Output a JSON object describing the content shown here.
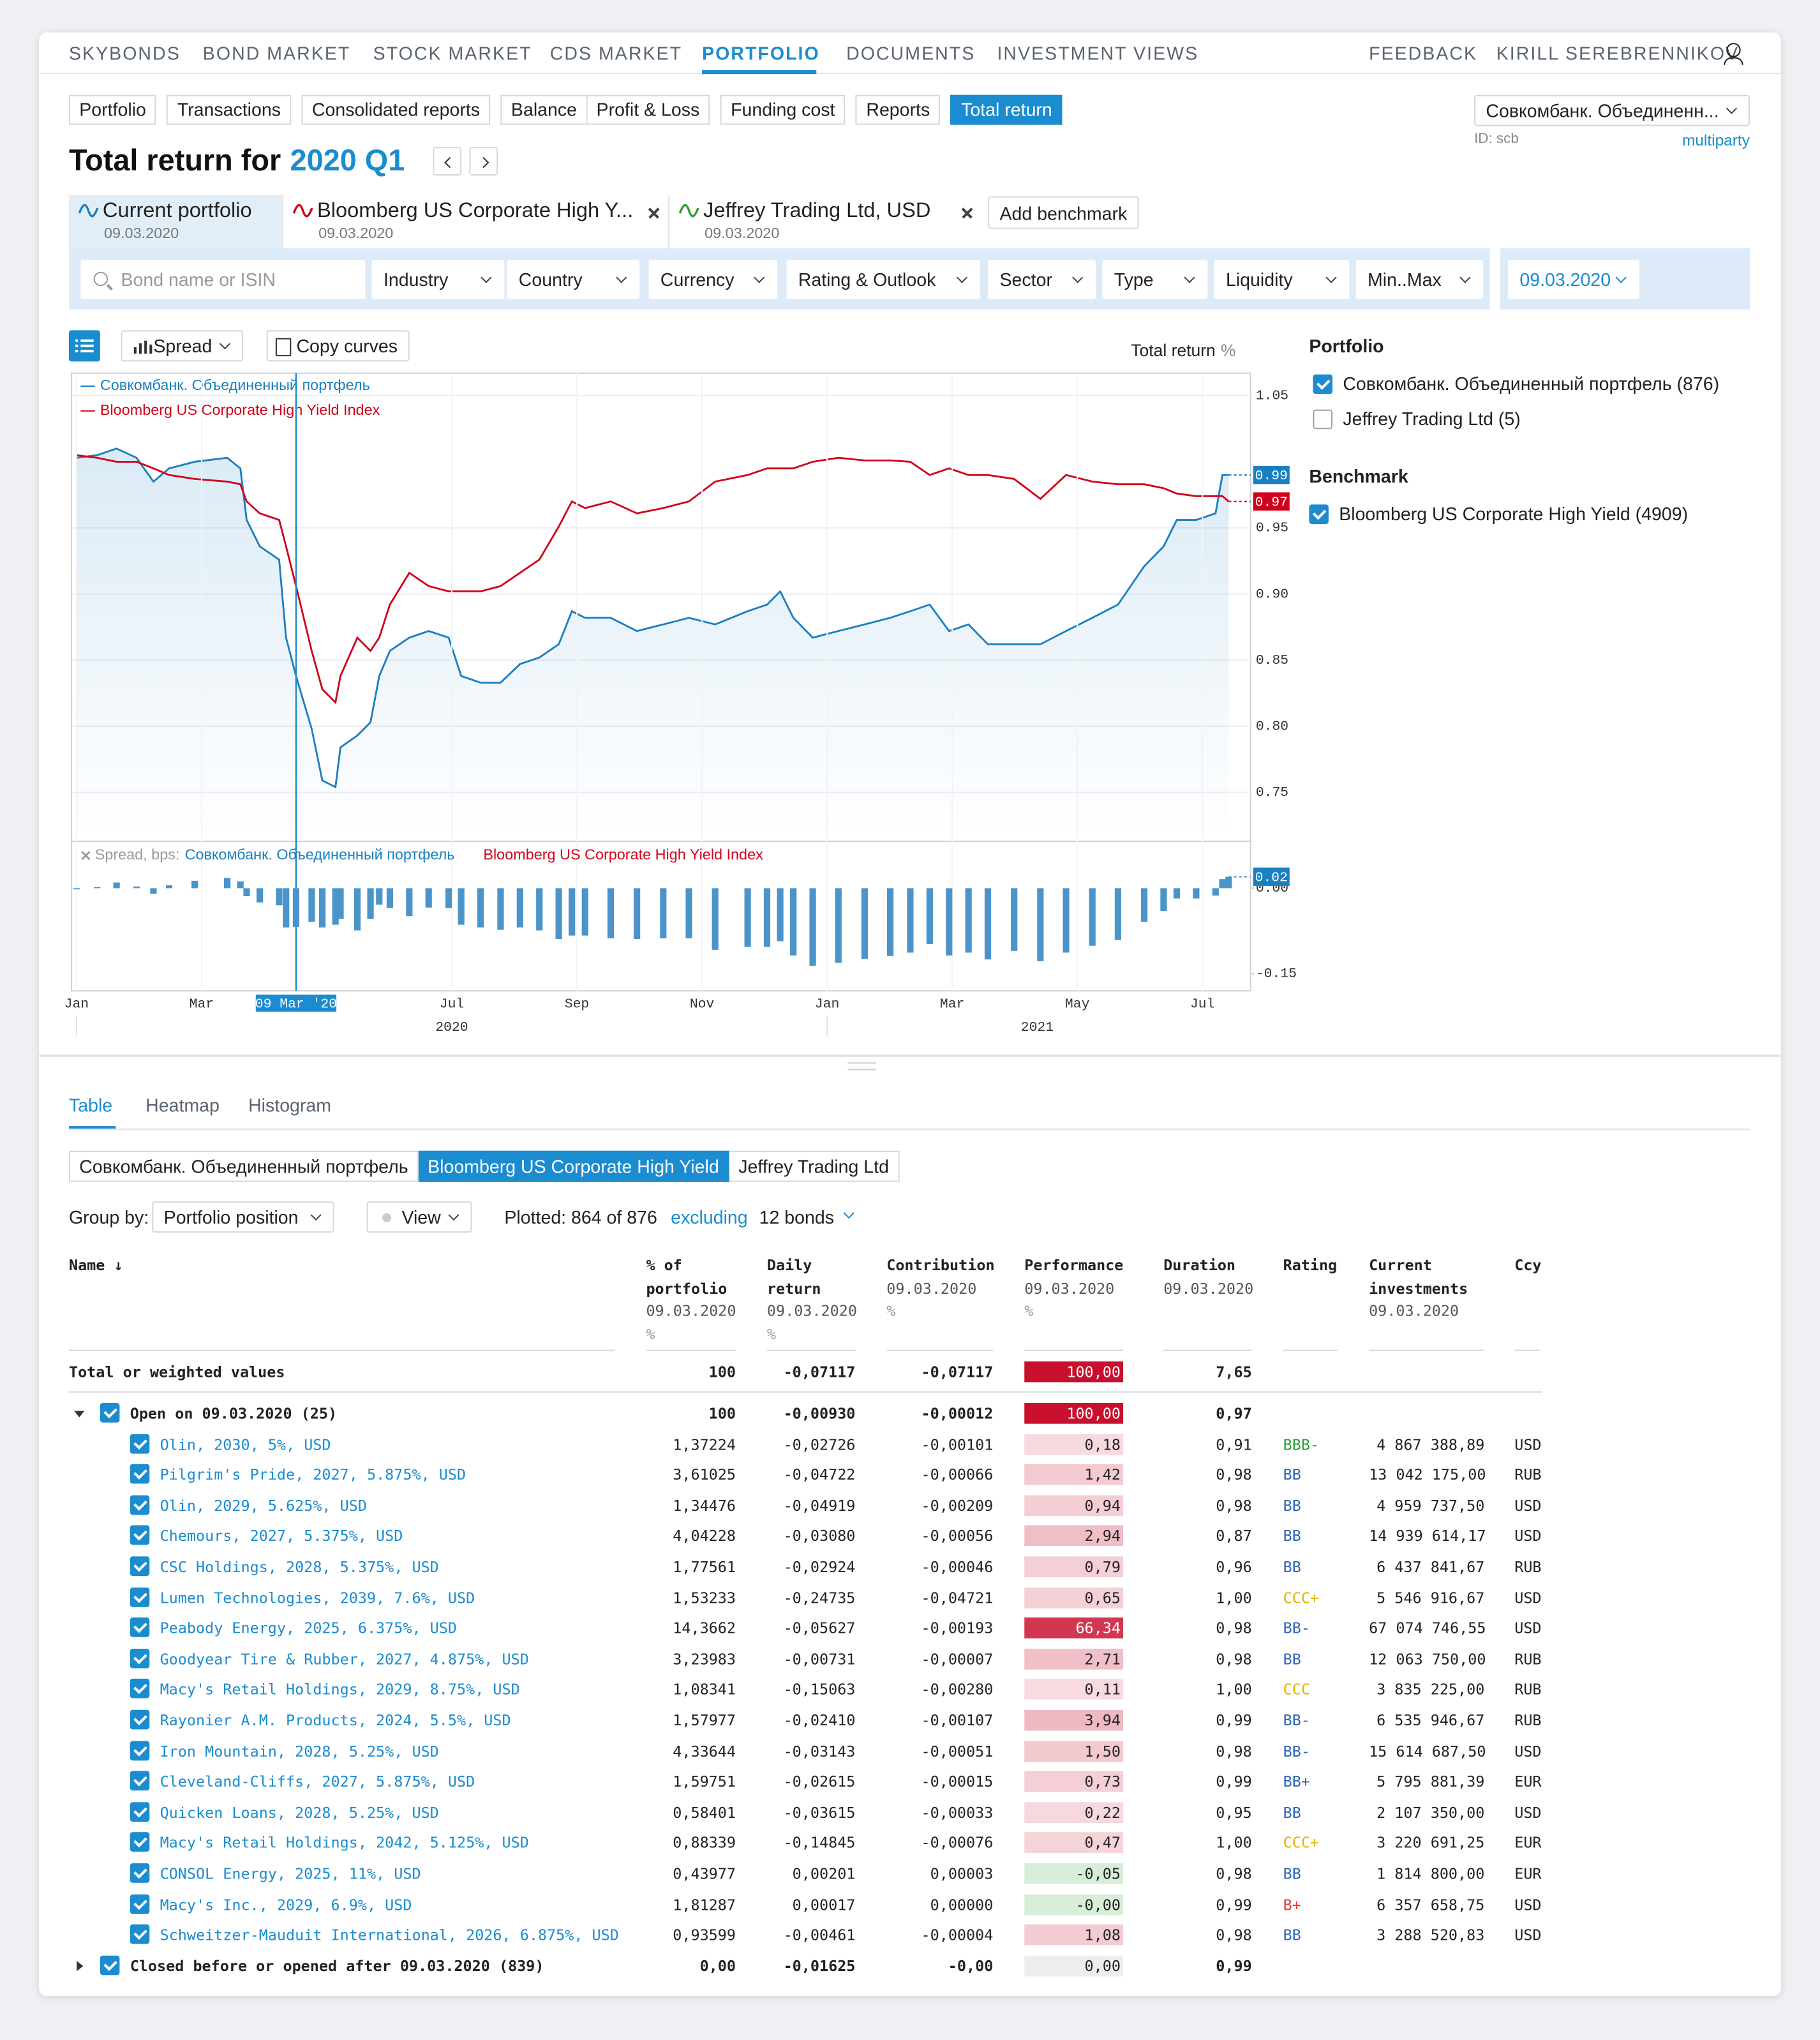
{
  "nav": {
    "items": [
      "SKYBONDS",
      "BOND MARKET",
      "STOCK MARKET",
      "CDS MARKET",
      "PORTFOLIO",
      "DOCUMENTS",
      "INVESTMENT VIEWS"
    ],
    "active": 4,
    "right": [
      "FEEDBACK",
      "KIRILL SEREBRENNIKOV"
    ]
  },
  "subtabs": {
    "items": [
      "Portfolio",
      "Transactions",
      "Consolidated reports",
      "Balance",
      "Profit & Loss",
      "Funding cost",
      "Reports",
      "Total return"
    ],
    "active": 7
  },
  "account": {
    "name": "Совкомбанк. Объединенн...",
    "id": "ID: scb",
    "mode": "multiparty"
  },
  "heading": {
    "text": "Total return for",
    "period": "2020 Q1"
  },
  "curves": {
    "items": [
      {
        "name": "Current portfolio",
        "date": "09.03.2020",
        "color": "#1a7fc1",
        "closable": false
      },
      {
        "name": "Bloomberg US Corporate High Y...",
        "date": "09.03.2020",
        "color": "#d0021b",
        "closable": true
      },
      {
        "name": "Jeffrey Trading Ltd, USD",
        "date": "09.03.2020",
        "color": "#2e9e2e",
        "closable": true
      }
    ],
    "add": "Add benchmark"
  },
  "filters": {
    "search": "Bond name or ISIN",
    "items": [
      "Industry",
      "Country",
      "Currency",
      "Rating & Outlook",
      "Sector",
      "Type",
      "Liquidity",
      "Min..Max"
    ],
    "date": "09.03.2020"
  },
  "toolbar": {
    "mode": "Spread",
    "copy": "Copy curves"
  },
  "chart_data": [
    {
      "type": "line",
      "y_label": "Total return",
      "y_unit": "%",
      "x": [
        0,
        0.33,
        0.64,
        0.96,
        1.23,
        1.48,
        1.89,
        2.41,
        2.62,
        2.72,
        2.93,
        3.24,
        3.35,
        3.51,
        3.76,
        3.93,
        4.14,
        4.22,
        4.49,
        4.7,
        4.84,
        5.01,
        5.32,
        5.63,
        5.95,
        6.15,
        6.46,
        6.78,
        7.09,
        7.4,
        7.71,
        7.92,
        8.13,
        8.54,
        8.96,
        9.38,
        9.79,
        10.21,
        10.73,
        11.04,
        11.25,
        11.46,
        11.77,
        12.18,
        12.6,
        13.01,
        13.33,
        13.64,
        13.95,
        14.26,
        14.57,
        14.99,
        15.41,
        15.82,
        16.24,
        16.65,
        17.07,
        17.38,
        17.59,
        17.9,
        18.21,
        18.32,
        18.42
      ],
      "series": [
        {
          "name": "Совкомбанк. Объединенный портфель",
          "color": "#1a7fc1",
          "values": [
            1.003,
            1.005,
            1.01,
            1.003,
            0.985,
            0.995,
            1,
            1.003,
            0.995,
            0.956,
            0.936,
            0.926,
            0.867,
            0.838,
            0.798,
            0.759,
            0.754,
            0.784,
            0.793,
            0.803,
            0.838,
            0.857,
            0.867,
            0.872,
            0.867,
            0.838,
            0.833,
            0.833,
            0.847,
            0.852,
            0.862,
            0.887,
            0.882,
            0.882,
            0.872,
            0.877,
            0.882,
            0.877,
            0.887,
            0.892,
            0.902,
            0.882,
            0.867,
            0.872,
            0.877,
            0.882,
            0.887,
            0.892,
            0.872,
            0.877,
            0.862,
            0.862,
            0.862,
            0.872,
            0.882,
            0.892,
            0.921,
            0.936,
            0.956,
            0.956,
            0.961,
            0.99,
            0.99
          ]
        },
        {
          "name": "Bloomberg US Corporate High Yield Index",
          "color": "#d0021b",
          "values": [
            1.005,
            1.003,
            1,
            1,
            0.995,
            0.99,
            0.987,
            0.985,
            0.983,
            0.97,
            0.961,
            0.956,
            0.936,
            0.906,
            0.857,
            0.828,
            0.818,
            0.838,
            0.867,
            0.857,
            0.867,
            0.892,
            0.916,
            0.906,
            0.902,
            0.902,
            0.902,
            0.906,
            0.916,
            0.926,
            0.951,
            0.97,
            0.965,
            0.97,
            0.961,
            0.965,
            0.97,
            0.985,
            0.99,
            0.995,
            0.995,
            0.995,
            1,
            1.003,
            1.001,
            1.001,
            1,
            0.99,
            0.995,
            0.99,
            0.99,
            0.987,
            0.972,
            0.99,
            0.985,
            0.983,
            0.983,
            0.98,
            0.976,
            0.974,
            0.974,
            0.974,
            0.97
          ]
        }
      ],
      "xlim": [
        -0.08,
        18.77
      ],
      "xticks": [
        {
          "value": 0,
          "label": "Jan"
        },
        {
          "value": 2,
          "label": "Mar"
        },
        {
          "value": 6,
          "label": "Jul"
        },
        {
          "value": 8,
          "label": "Sep"
        },
        {
          "value": 10,
          "label": "Nov"
        },
        {
          "value": 12,
          "label": "Jan"
        },
        {
          "value": 14,
          "label": "Mar"
        },
        {
          "value": 16,
          "label": "May"
        },
        {
          "value": 18,
          "label": "Jul"
        }
      ],
      "year_ticks": [
        {
          "value": 6,
          "label": "2020"
        },
        {
          "value": 15.36,
          "label": "2021"
        }
      ],
      "crosshair": {
        "value": 3.51,
        "label": "09 Mar '20"
      },
      "ylim": [
        0.714,
        1.067
      ],
      "yticks": [
        0.75,
        {
          "value": 0.8,
          "label": "0.80"
        },
        0.85,
        {
          "value": 0.9,
          "label": "0.90"
        },
        0.95,
        1.05
      ],
      "grid": true
    },
    {
      "type": "bar",
      "label": "Spread, bps:",
      "legend": [
        {
          "name": "Совкомбанк. Объединенный портфель",
          "color": "#1a7fc1"
        },
        {
          "name": "Bloomberg US Corporate High Yield Index",
          "color": "#d0021b"
        }
      ],
      "color": "#4b94c9",
      "x": [
        0,
        0.33,
        0.64,
        0.96,
        1.23,
        1.48,
        1.89,
        2.41,
        2.62,
        2.72,
        2.93,
        3.24,
        3.35,
        3.51,
        3.76,
        3.93,
        4.14,
        4.22,
        4.49,
        4.7,
        4.84,
        5.01,
        5.32,
        5.63,
        5.95,
        6.15,
        6.46,
        6.78,
        7.09,
        7.4,
        7.71,
        7.92,
        8.13,
        8.54,
        8.96,
        9.38,
        9.79,
        10.21,
        10.73,
        11.04,
        11.25,
        11.46,
        11.77,
        12.18,
        12.6,
        13.01,
        13.33,
        13.64,
        13.95,
        14.26,
        14.57,
        14.99,
        15.41,
        15.82,
        16.24,
        16.65,
        17.07,
        17.38,
        17.59,
        17.9,
        18.21,
        18.32,
        18.42
      ],
      "values": [
        -0.002,
        0.002,
        0.01,
        0.003,
        -0.01,
        0.005,
        0.013,
        0.018,
        0.012,
        -0.014,
        -0.025,
        -0.03,
        -0.069,
        -0.068,
        -0.059,
        -0.069,
        -0.064,
        -0.054,
        -0.074,
        -0.054,
        -0.029,
        -0.035,
        -0.049,
        -0.034,
        -0.035,
        -0.064,
        -0.069,
        -0.073,
        -0.069,
        -0.074,
        -0.089,
        -0.083,
        -0.083,
        -0.088,
        -0.089,
        -0.088,
        -0.088,
        -0.108,
        -0.103,
        -0.103,
        -0.093,
        -0.118,
        -0.136,
        -0.131,
        -0.124,
        -0.119,
        -0.113,
        -0.098,
        -0.118,
        -0.113,
        -0.125,
        -0.11,
        -0.128,
        -0.113,
        -0.101,
        -0.091,
        -0.059,
        -0.04,
        -0.018,
        -0.018,
        -0.013,
        0.016,
        0.02
      ],
      "xlim": [
        -0.08,
        18.77
      ],
      "ylim": [
        -0.18,
        0.08
      ],
      "yticks": [
        {
          "value": 0,
          "label": "0.00"
        },
        -0.15
      ]
    }
  ],
  "sidebar": {
    "portfolio_title": "Portfolio",
    "portfolios": [
      {
        "label": "Совкомбанк. Объединенный портфель (876)",
        "checked": true
      },
      {
        "label": "Jeffrey Trading Ltd (5)",
        "checked": false
      }
    ],
    "benchmark_title": "Benchmark",
    "benchmarks": [
      {
        "label": "Bloomberg US Corporate High Yield (4909)",
        "checked": true
      }
    ]
  },
  "bottom": {
    "tabs": [
      "Table",
      "Heatmap",
      "Histogram"
    ],
    "active_tab": 0,
    "sources": [
      "Совкомбанк. Объединенный портфель",
      "Bloomberg US Corporate High Yield",
      "Jeffrey Trading Ltd"
    ],
    "active_source": 1,
    "group_by_label": "Group by:",
    "group_by": "Portfolio position",
    "view": "View",
    "plotted": "Plotted: 864 of 876",
    "excluding": "excluding",
    "excluded": "12 bonds"
  },
  "table": {
    "columns": [
      {
        "label": "Name ↓"
      },
      {
        "label": "% of portfolio",
        "date": "09.03.2020",
        "unit": "%"
      },
      {
        "label": "Daily return",
        "date": "09.03.2020",
        "unit": "%"
      },
      {
        "label": "Contribution",
        "date": "09.03.2020",
        "unit": "%"
      },
      {
        "label": "Performance",
        "date": "09.03.2020",
        "unit": "%"
      },
      {
        "label": "Duration",
        "date": "09.03.2020"
      },
      {
        "label": "Rating"
      },
      {
        "label": "Current investments",
        "date": "09.03.2020"
      },
      {
        "label": "Ccy"
      }
    ],
    "total": [
      "Total or weighted values",
      "100",
      "-0,07117",
      "-0,07117",
      "100,00",
      "7,65"
    ],
    "groups": [
      {
        "row": [
          "Open on 09.03.2020 (25)",
          "100",
          "-0,00930",
          "-0,00012",
          "100,00",
          "0,97"
        ],
        "expanded": true,
        "rows": [
          [
            "Olin, 2030, 5%, USD",
            "1,37224",
            "-0,02726",
            "-0,00101",
            "0,18",
            "0,91",
            "BBB-",
            "4 867 388,89",
            "USD"
          ],
          [
            "Pilgrim's Pride, 2027, 5.875%, USD",
            "3,61025",
            "-0,04722",
            "-0,00066",
            "1,42",
            "0,98",
            "BB",
            "13 042 175,00",
            "RUB"
          ],
          [
            "Olin, 2029, 5.625%, USD",
            "1,34476",
            "-0,04919",
            "-0,00209",
            "0,94",
            "0,98",
            "BB",
            "4 959 737,50",
            "USD"
          ],
          [
            "Chemours, 2027, 5.375%, USD",
            "4,04228",
            "-0,03080",
            "-0,00056",
            "2,94",
            "0,87",
            "BB",
            "14 939 614,17",
            "USD"
          ],
          [
            "CSC Holdings, 2028, 5.375%, USD",
            "1,77561",
            "-0,02924",
            "-0,00046",
            "0,79",
            "0,96",
            "BB",
            "6 437 841,67",
            "RUB"
          ],
          [
            "Lumen Technologies, 2039, 7.6%, USD",
            "1,53233",
            "-0,24735",
            "-0,04721",
            "0,65",
            "1,00",
            "CCC+",
            "5 546 916,67",
            "USD"
          ],
          [
            "Peabody Energy, 2025, 6.375%, USD",
            "14,3662",
            "-0,05627",
            "-0,00193",
            "66,34",
            "0,98",
            "BB-",
            "67 074 746,55",
            "USD"
          ],
          [
            "Goodyear Tire & Rubber, 2027, 4.875%, USD",
            "3,23983",
            "-0,00731",
            "-0,00007",
            "2,71",
            "0,98",
            "BB",
            "12 063 750,00",
            "RUB"
          ],
          [
            "Macy's Retail Holdings, 2029, 8.75%, USD",
            "1,08341",
            "-0,15063",
            "-0,00280",
            "0,11",
            "1,00",
            "CCC",
            "3 835 225,00",
            "RUB"
          ],
          [
            "Rayonier A.M. Products, 2024, 5.5%, USD",
            "1,57977",
            "-0,02410",
            "-0,00107",
            "3,94",
            "0,99",
            "BB-",
            "6 535 946,67",
            "RUB"
          ],
          [
            "Iron Mountain, 2028, 5.25%, USD",
            "4,33644",
            "-0,03143",
            "-0,00051",
            "1,50",
            "0,98",
            "BB-",
            "15 614 687,50",
            "USD"
          ],
          [
            "Cleveland-Cliffs, 2027, 5.875%, USD",
            "1,59751",
            "-0,02615",
            "-0,00015",
            "0,73",
            "0,99",
            "BB+",
            "5 795 881,39",
            "EUR"
          ],
          [
            "Quicken Loans, 2028, 5.25%, USD",
            "0,58401",
            "-0,03615",
            "-0,00033",
            "0,22",
            "0,95",
            "BB",
            "2 107 350,00",
            "USD"
          ],
          [
            "Macy's Retail Holdings, 2042, 5.125%, USD",
            "0,88339",
            "-0,14845",
            "-0,00076",
            "0,47",
            "1,00",
            "CCC+",
            "3 220 691,25",
            "EUR"
          ],
          [
            "CONSOL Energy, 2025, 11%, USD",
            "0,43977",
            "0,00201",
            "0,00003",
            "-0,05",
            "0,98",
            "BB",
            "1 814 800,00",
            "EUR"
          ],
          [
            "Macy's Inc., 2029, 6.9%, USD",
            "1,81287",
            "0,00017",
            "0,00000",
            "-0,00",
            "0,99",
            "B+",
            "6 357 658,75",
            "USD"
          ],
          [
            "Schweitzer-Mauduit International, 2026, 6.875%, USD",
            "0,93599",
            "-0,00461",
            "-0,00004",
            "1,08",
            "0,98",
            "BB",
            "3 288 520,83",
            "USD"
          ]
        ]
      },
      {
        "row": [
          "Closed before or opened after 09.03.2020 (839)",
          "0,00",
          "-0,01625",
          "-0,00",
          "0,00",
          "0,99"
        ],
        "expanded": false
      }
    ],
    "rating_colors": {
      "BBB-": "#2e9e3e",
      "BB": "#2f66b3",
      "BB-": "#2f66b3",
      "BB+": "#2f66b3",
      "CCC+": "#e3b400",
      "CCC": "#e3b400",
      "B+": "#e53935"
    }
  }
}
